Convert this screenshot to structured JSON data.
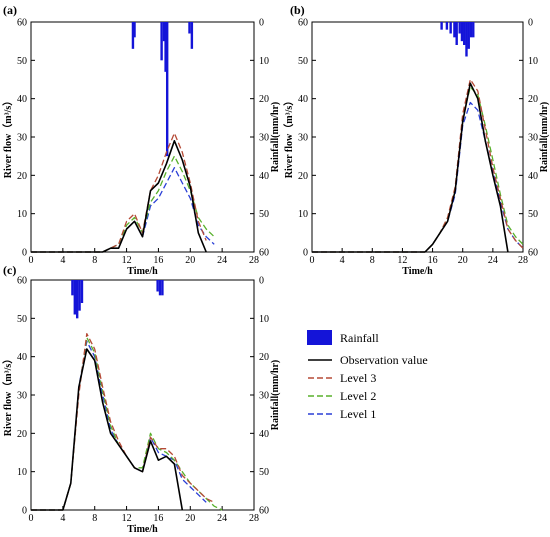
{
  "chart_data": [
    {
      "panel_label": "(a)",
      "type": "line",
      "xlabel": "Time/h",
      "ylabel": "River flow（m³/s）",
      "y2label": "Rainfall(mm/hr)",
      "xlim": [
        0,
        28
      ],
      "ylim": [
        0,
        60
      ],
      "y2lim": [
        60,
        0
      ],
      "x_ticks": [
        "0",
        "4",
        "8",
        "12",
        "16",
        "20",
        "24",
        "28"
      ],
      "y_ticks": [
        "0",
        "10",
        "20",
        "30",
        "40",
        "50",
        "60"
      ],
      "y2_ticks": [
        "0",
        "10",
        "20",
        "30",
        "40",
        "50",
        "60"
      ],
      "rainfall": {
        "name": "Rainfall",
        "x": [
          12.8,
          13.0,
          16.4,
          16.7,
          16.9,
          17.1,
          19.9,
          20.2
        ],
        "values": [
          7,
          4,
          10,
          5,
          13,
          35,
          3,
          7
        ]
      },
      "series": [
        {
          "name": "Observation value",
          "x": [
            0,
            9,
            10,
            11,
            12,
            13,
            14,
            15,
            16,
            17,
            18,
            19,
            20,
            21,
            22
          ],
          "values": [
            0,
            0,
            1,
            1,
            6,
            8,
            4,
            16,
            18,
            23,
            29,
            24,
            17,
            5,
            0
          ]
        },
        {
          "name": "Level 3",
          "x": [
            0,
            9,
            10,
            11,
            12,
            13,
            14,
            15,
            16,
            17,
            18,
            19,
            20,
            21,
            22
          ],
          "values": [
            0,
            0,
            1,
            2,
            8,
            10,
            5,
            16,
            20,
            26,
            31,
            26,
            18,
            8,
            3
          ]
        },
        {
          "name": "Level 2",
          "x": [
            0,
            9,
            10,
            11,
            12,
            13,
            14,
            15,
            16,
            17,
            18,
            19,
            20,
            21,
            22,
            23
          ],
          "values": [
            0,
            0,
            1,
            2,
            7,
            9,
            5,
            13,
            16,
            21,
            25,
            21,
            16,
            9,
            6,
            4
          ]
        },
        {
          "name": "Level 1",
          "x": [
            0,
            9,
            10,
            11,
            12,
            13,
            14,
            15,
            16,
            17,
            18,
            19,
            20,
            21,
            22,
            23
          ],
          "values": [
            0,
            0,
            1,
            2,
            6,
            8,
            4,
            12,
            14,
            18,
            22,
            18,
            14,
            7,
            4,
            2
          ]
        }
      ]
    },
    {
      "panel_label": "(b)",
      "type": "line",
      "xlabel": "Time/h",
      "ylabel": "River flow（m³/s）",
      "y2label": "Rainfall(mm/hr)",
      "xlim": [
        0,
        28
      ],
      "ylim": [
        0,
        60
      ],
      "y2lim": [
        60,
        0
      ],
      "x_ticks": [
        "0",
        "4",
        "8",
        "12",
        "16",
        "20",
        "24",
        "28"
      ],
      "y_ticks": [
        "0",
        "10",
        "20",
        "30",
        "40",
        "50",
        "60"
      ],
      "y2_ticks": [
        "0",
        "10",
        "20",
        "30",
        "40",
        "50",
        "60"
      ],
      "rainfall": {
        "name": "Rainfall",
        "x": [
          17.2,
          17.9,
          18.4,
          18.9,
          19.2,
          19.6,
          19.9,
          20.2,
          20.5,
          20.8,
          21.1,
          21.4
        ],
        "values": [
          2,
          2,
          3,
          4,
          6,
          3,
          5,
          6,
          9,
          7,
          4,
          4
        ]
      },
      "series": [
        {
          "name": "Observation value",
          "x": [
            0,
            15,
            16,
            17,
            18,
            19,
            20,
            21,
            22,
            23,
            24,
            25,
            26
          ],
          "values": [
            0,
            0,
            2,
            5,
            8,
            16,
            34,
            44,
            40,
            29,
            20,
            12,
            0
          ]
        },
        {
          "name": "Level 3",
          "x": [
            0,
            15,
            16,
            17,
            18,
            19,
            20,
            21,
            22,
            23,
            24,
            25,
            26,
            27,
            28
          ],
          "values": [
            0,
            0,
            2,
            5,
            9,
            17,
            36,
            45,
            42,
            32,
            22,
            14,
            6,
            3,
            1
          ]
        },
        {
          "name": "Level 2",
          "x": [
            0,
            15,
            16,
            17,
            18,
            19,
            20,
            21,
            22,
            23,
            24,
            25,
            26,
            27,
            28
          ],
          "values": [
            0,
            0,
            2,
            5,
            9,
            16,
            35,
            43,
            41,
            33,
            24,
            15,
            7,
            4,
            2
          ]
        },
        {
          "name": "Level 1",
          "x": [
            0,
            15,
            16,
            17,
            18,
            19,
            20,
            21,
            22,
            23,
            24,
            25,
            26,
            27,
            28
          ],
          "values": [
            0,
            0,
            2,
            5,
            8,
            15,
            33,
            39,
            37,
            29,
            21,
            13,
            6,
            3,
            1
          ]
        }
      ]
    },
    {
      "panel_label": "(c)",
      "type": "line",
      "xlabel": "Time/h",
      "ylabel": "River flow（m³/s）",
      "y2label": "Rainfall(mm/hr)",
      "xlim": [
        0,
        28
      ],
      "ylim": [
        0,
        60
      ],
      "y2lim": [
        60,
        0
      ],
      "x_ticks": [
        "0",
        "4",
        "8",
        "12",
        "16",
        "20",
        "24",
        "28"
      ],
      "y_ticks": [
        "0",
        "10",
        "20",
        "30",
        "40",
        "50",
        "60"
      ],
      "y2_ticks": [
        "0",
        "10",
        "20",
        "30",
        "40",
        "50",
        "60"
      ],
      "rainfall": {
        "name": "Rainfall",
        "x": [
          5.2,
          5.5,
          5.8,
          6.1,
          6.4,
          15.9,
          16.2,
          16.5
        ],
        "values": [
          4,
          9,
          10,
          8,
          6,
          3,
          4,
          4
        ]
      },
      "series": [
        {
          "name": "Observation value",
          "x": [
            0,
            4,
            5,
            6,
            7,
            8,
            9,
            10,
            11,
            12,
            13,
            14,
            15,
            16,
            17,
            18,
            19
          ],
          "values": [
            0,
            0,
            7,
            32,
            42,
            39,
            28,
            20,
            17,
            14,
            11,
            10,
            18,
            13,
            14,
            12,
            0
          ]
        },
        {
          "name": "Level 3",
          "x": [
            0,
            4,
            5,
            6,
            7,
            8,
            9,
            10,
            11,
            12,
            13,
            14,
            15,
            16,
            17,
            18,
            19,
            20,
            21,
            22,
            23
          ],
          "values": [
            0,
            0,
            7,
            30,
            46,
            42,
            32,
            23,
            18,
            14,
            11,
            10,
            19,
            16,
            16,
            14,
            9,
            7,
            5,
            3,
            2
          ]
        },
        {
          "name": "Level 2",
          "x": [
            0,
            4,
            5,
            6,
            7,
            8,
            9,
            10,
            11,
            12,
            13,
            14,
            15,
            16,
            17,
            18,
            19,
            20,
            21,
            22,
            23,
            24
          ],
          "values": [
            0,
            0,
            7,
            31,
            45,
            41,
            31,
            22,
            17,
            14,
            11,
            11,
            20,
            16,
            15,
            13,
            10,
            7,
            5,
            3,
            1,
            0
          ]
        },
        {
          "name": "Level 1",
          "x": [
            0,
            4,
            5,
            6,
            7,
            8,
            9,
            10,
            11,
            12,
            13,
            14,
            15,
            16,
            17,
            18,
            19,
            20,
            21,
            22
          ],
          "values": [
            0,
            0,
            7,
            32,
            44,
            40,
            30,
            21,
            17,
            14,
            11,
            10,
            19,
            15,
            14,
            13,
            8,
            6,
            4,
            2
          ]
        }
      ]
    }
  ],
  "legend": {
    "items": [
      {
        "label": "Rainfall",
        "kind": "bar",
        "color": "#1414d8"
      },
      {
        "label": "Observation value",
        "kind": "solid",
        "color": "#000000"
      },
      {
        "label": "Level 3",
        "kind": "dashed",
        "color": "#b54a36"
      },
      {
        "label": "Level 2",
        "kind": "dashed",
        "color": "#58b02c"
      },
      {
        "label": "Level 1",
        "kind": "dashed",
        "color": "#2a3fd6"
      }
    ]
  },
  "colors": {
    "rainfall": "#1414d8",
    "observation": "#000000",
    "level3": "#b54a36",
    "level2": "#58b02c",
    "level1": "#2a3fd6"
  }
}
